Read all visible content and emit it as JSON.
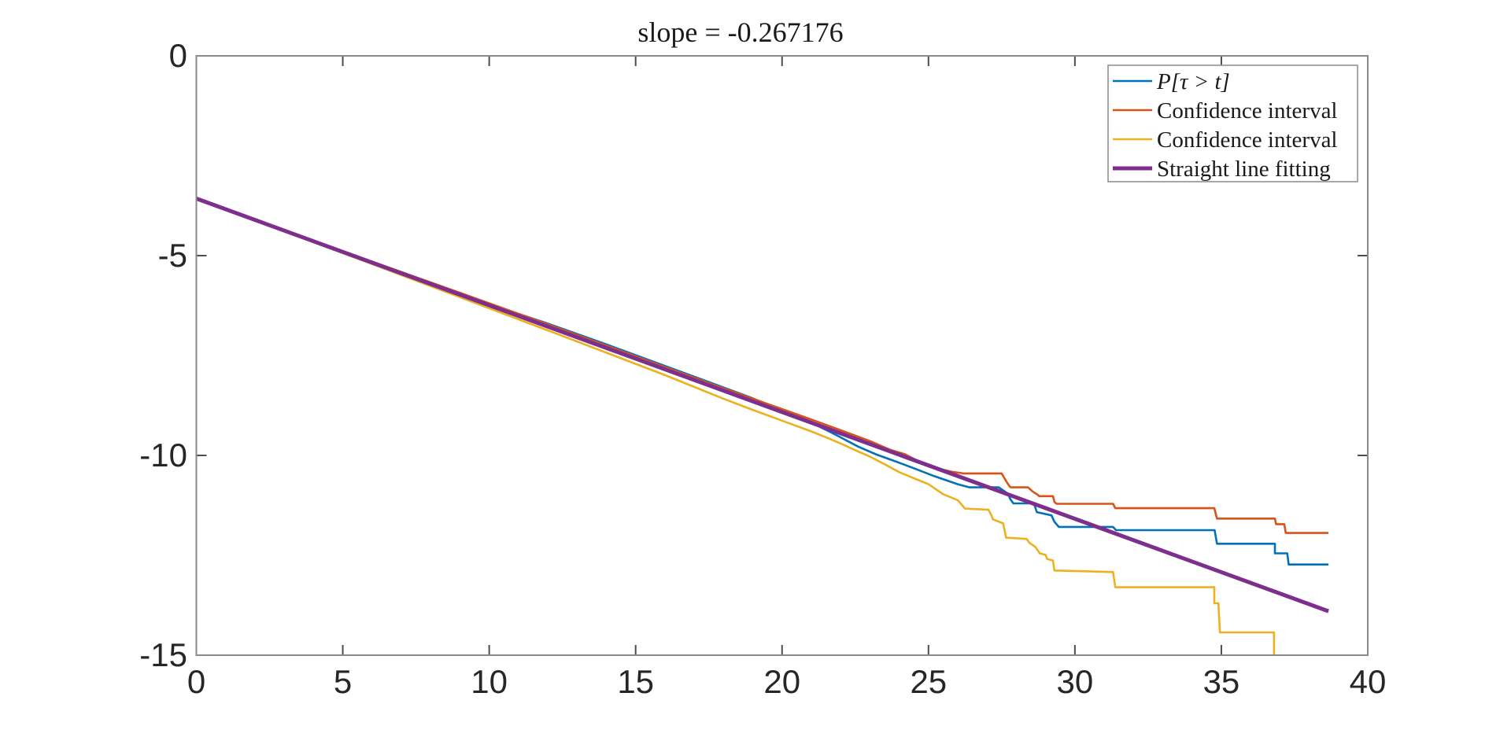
{
  "figure": {
    "background": "#ffffff"
  },
  "title": {
    "text": "slope = -0.267176"
  },
  "axes": {
    "spine_color": "#8a8a8a",
    "tick_color": "#4d4d4d",
    "label_color": "#262626",
    "xticks": {
      "values": [
        0,
        5,
        10,
        15,
        20,
        25,
        30,
        35,
        40
      ],
      "labels": [
        "0",
        "5",
        "10",
        "15",
        "20",
        "25",
        "30",
        "35",
        "40"
      ]
    },
    "yticks": {
      "values": [
        0,
        -5,
        -10,
        -15
      ],
      "labels": [
        "0",
        "-5",
        "-10",
        "-15"
      ]
    }
  },
  "legend": {
    "items": [
      {
        "label": "P[τ > t]",
        "color": "#0072BD",
        "line_width": 2.6,
        "italic": true
      },
      {
        "label": "Confidence interval",
        "color": "#D95319",
        "line_width": 2.6,
        "italic": false
      },
      {
        "label": "Confidence interval",
        "color": "#EDB120",
        "line_width": 2.6,
        "italic": false
      },
      {
        "label": "Straight line fitting",
        "color": "#7E2F8E",
        "line_width": 5,
        "italic": false
      }
    ]
  },
  "chart_data": {
    "type": "line",
    "title": "slope = -0.267176",
    "xlabel": "",
    "ylabel": "",
    "xlim": [
      0,
      40
    ],
    "ylim": [
      -15,
      0
    ],
    "grid": false,
    "legend_position": "top-right",
    "fit_slope": -0.267176,
    "fit_intercept": -3.57,
    "series": [
      {
        "name": "P[τ > t]",
        "color": "#0072BD",
        "width": 2.6,
        "points": [
          [
            0,
            -3.57
          ],
          [
            3,
            -4.37
          ],
          [
            6,
            -5.17
          ],
          [
            9,
            -5.97
          ],
          [
            12,
            -6.7
          ],
          [
            14,
            -7.22
          ],
          [
            16,
            -7.76
          ],
          [
            18,
            -8.3
          ],
          [
            19,
            -8.57
          ],
          [
            20,
            -8.88
          ],
          [
            21,
            -9.18
          ],
          [
            21.8,
            -9.47
          ],
          [
            22.6,
            -9.78
          ],
          [
            23.2,
            -9.97
          ],
          [
            23.8,
            -10.13
          ],
          [
            24.5,
            -10.32
          ],
          [
            25.2,
            -10.52
          ],
          [
            26.0,
            -10.72
          ],
          [
            26.4,
            -10.8
          ],
          [
            27.4,
            -10.8
          ],
          [
            27.7,
            -10.95
          ],
          [
            27.8,
            -11.1
          ],
          [
            27.9,
            -11.2
          ],
          [
            28.6,
            -11.2
          ],
          [
            28.7,
            -11.42
          ],
          [
            29.2,
            -11.5
          ],
          [
            29.3,
            -11.66
          ],
          [
            29.45,
            -11.79
          ],
          [
            31.3,
            -11.79
          ],
          [
            31.4,
            -11.87
          ],
          [
            34.77,
            -11.87
          ],
          [
            34.85,
            -12.21
          ],
          [
            36.83,
            -12.21
          ],
          [
            36.83,
            -12.45
          ],
          [
            37.25,
            -12.45
          ],
          [
            37.3,
            -12.73
          ],
          [
            38.66,
            -12.73
          ]
        ]
      },
      {
        "name": "Confidence interval",
        "color": "#D95319",
        "width": 2.6,
        "points": [
          [
            0,
            -3.57
          ],
          [
            3,
            -4.36
          ],
          [
            6,
            -5.15
          ],
          [
            9,
            -5.93
          ],
          [
            12,
            -6.72
          ],
          [
            14,
            -7.25
          ],
          [
            16,
            -7.79
          ],
          [
            18,
            -8.32
          ],
          [
            19,
            -8.58
          ],
          [
            20,
            -8.84
          ],
          [
            21,
            -9.1
          ],
          [
            22,
            -9.37
          ],
          [
            23,
            -9.64
          ],
          [
            23.7,
            -9.86
          ],
          [
            24.2,
            -9.97
          ],
          [
            24.7,
            -10.16
          ],
          [
            25.2,
            -10.31
          ],
          [
            25.8,
            -10.41
          ],
          [
            26.2,
            -10.45
          ],
          [
            27.5,
            -10.45
          ],
          [
            27.6,
            -10.58
          ],
          [
            27.7,
            -10.7
          ],
          [
            27.8,
            -10.8
          ],
          [
            28.4,
            -10.8
          ],
          [
            28.55,
            -10.9
          ],
          [
            28.7,
            -10.97
          ],
          [
            28.78,
            -11.02
          ],
          [
            29.25,
            -11.02
          ],
          [
            29.3,
            -11.16
          ],
          [
            29.37,
            -11.21
          ],
          [
            31.3,
            -11.21
          ],
          [
            31.38,
            -11.32
          ],
          [
            34.76,
            -11.32
          ],
          [
            34.85,
            -11.58
          ],
          [
            36.83,
            -11.58
          ],
          [
            36.87,
            -11.72
          ],
          [
            37.15,
            -11.72
          ],
          [
            37.2,
            -11.94
          ],
          [
            38.66,
            -11.94
          ]
        ]
      },
      {
        "name": "Confidence interval",
        "color": "#EDB120",
        "width": 2.6,
        "points": [
          [
            0,
            -3.57
          ],
          [
            3,
            -4.39
          ],
          [
            6,
            -5.21
          ],
          [
            9,
            -6.04
          ],
          [
            12,
            -6.87
          ],
          [
            14,
            -7.43
          ],
          [
            16,
            -7.99
          ],
          [
            18,
            -8.58
          ],
          [
            19,
            -8.86
          ],
          [
            20,
            -9.13
          ],
          [
            21,
            -9.4
          ],
          [
            21.5,
            -9.55
          ],
          [
            22,
            -9.7
          ],
          [
            22.5,
            -9.87
          ],
          [
            23,
            -10.03
          ],
          [
            23.5,
            -10.22
          ],
          [
            24,
            -10.42
          ],
          [
            24.5,
            -10.57
          ],
          [
            25,
            -10.72
          ],
          [
            25.5,
            -10.97
          ],
          [
            26,
            -11.12
          ],
          [
            26.25,
            -11.33
          ],
          [
            27.05,
            -11.36
          ],
          [
            27.15,
            -11.5
          ],
          [
            27.2,
            -11.6
          ],
          [
            27.55,
            -11.7
          ],
          [
            27.65,
            -12.06
          ],
          [
            28.35,
            -12.09
          ],
          [
            28.45,
            -12.19
          ],
          [
            28.65,
            -12.29
          ],
          [
            28.8,
            -12.45
          ],
          [
            29.0,
            -12.49
          ],
          [
            29.05,
            -12.59
          ],
          [
            29.25,
            -12.63
          ],
          [
            29.3,
            -12.88
          ],
          [
            31.3,
            -12.92
          ],
          [
            31.38,
            -13.3
          ],
          [
            34.76,
            -13.3
          ],
          [
            34.76,
            -13.7
          ],
          [
            34.9,
            -13.7
          ],
          [
            34.95,
            -14.43
          ],
          [
            36.8,
            -14.43
          ],
          [
            36.8,
            -15.0
          ]
        ]
      },
      {
        "name": "Straight line fitting",
        "color": "#7E2F8E",
        "width": 5,
        "points": [
          [
            0,
            -3.57
          ],
          [
            38.66,
            -13.9
          ]
        ]
      }
    ]
  }
}
